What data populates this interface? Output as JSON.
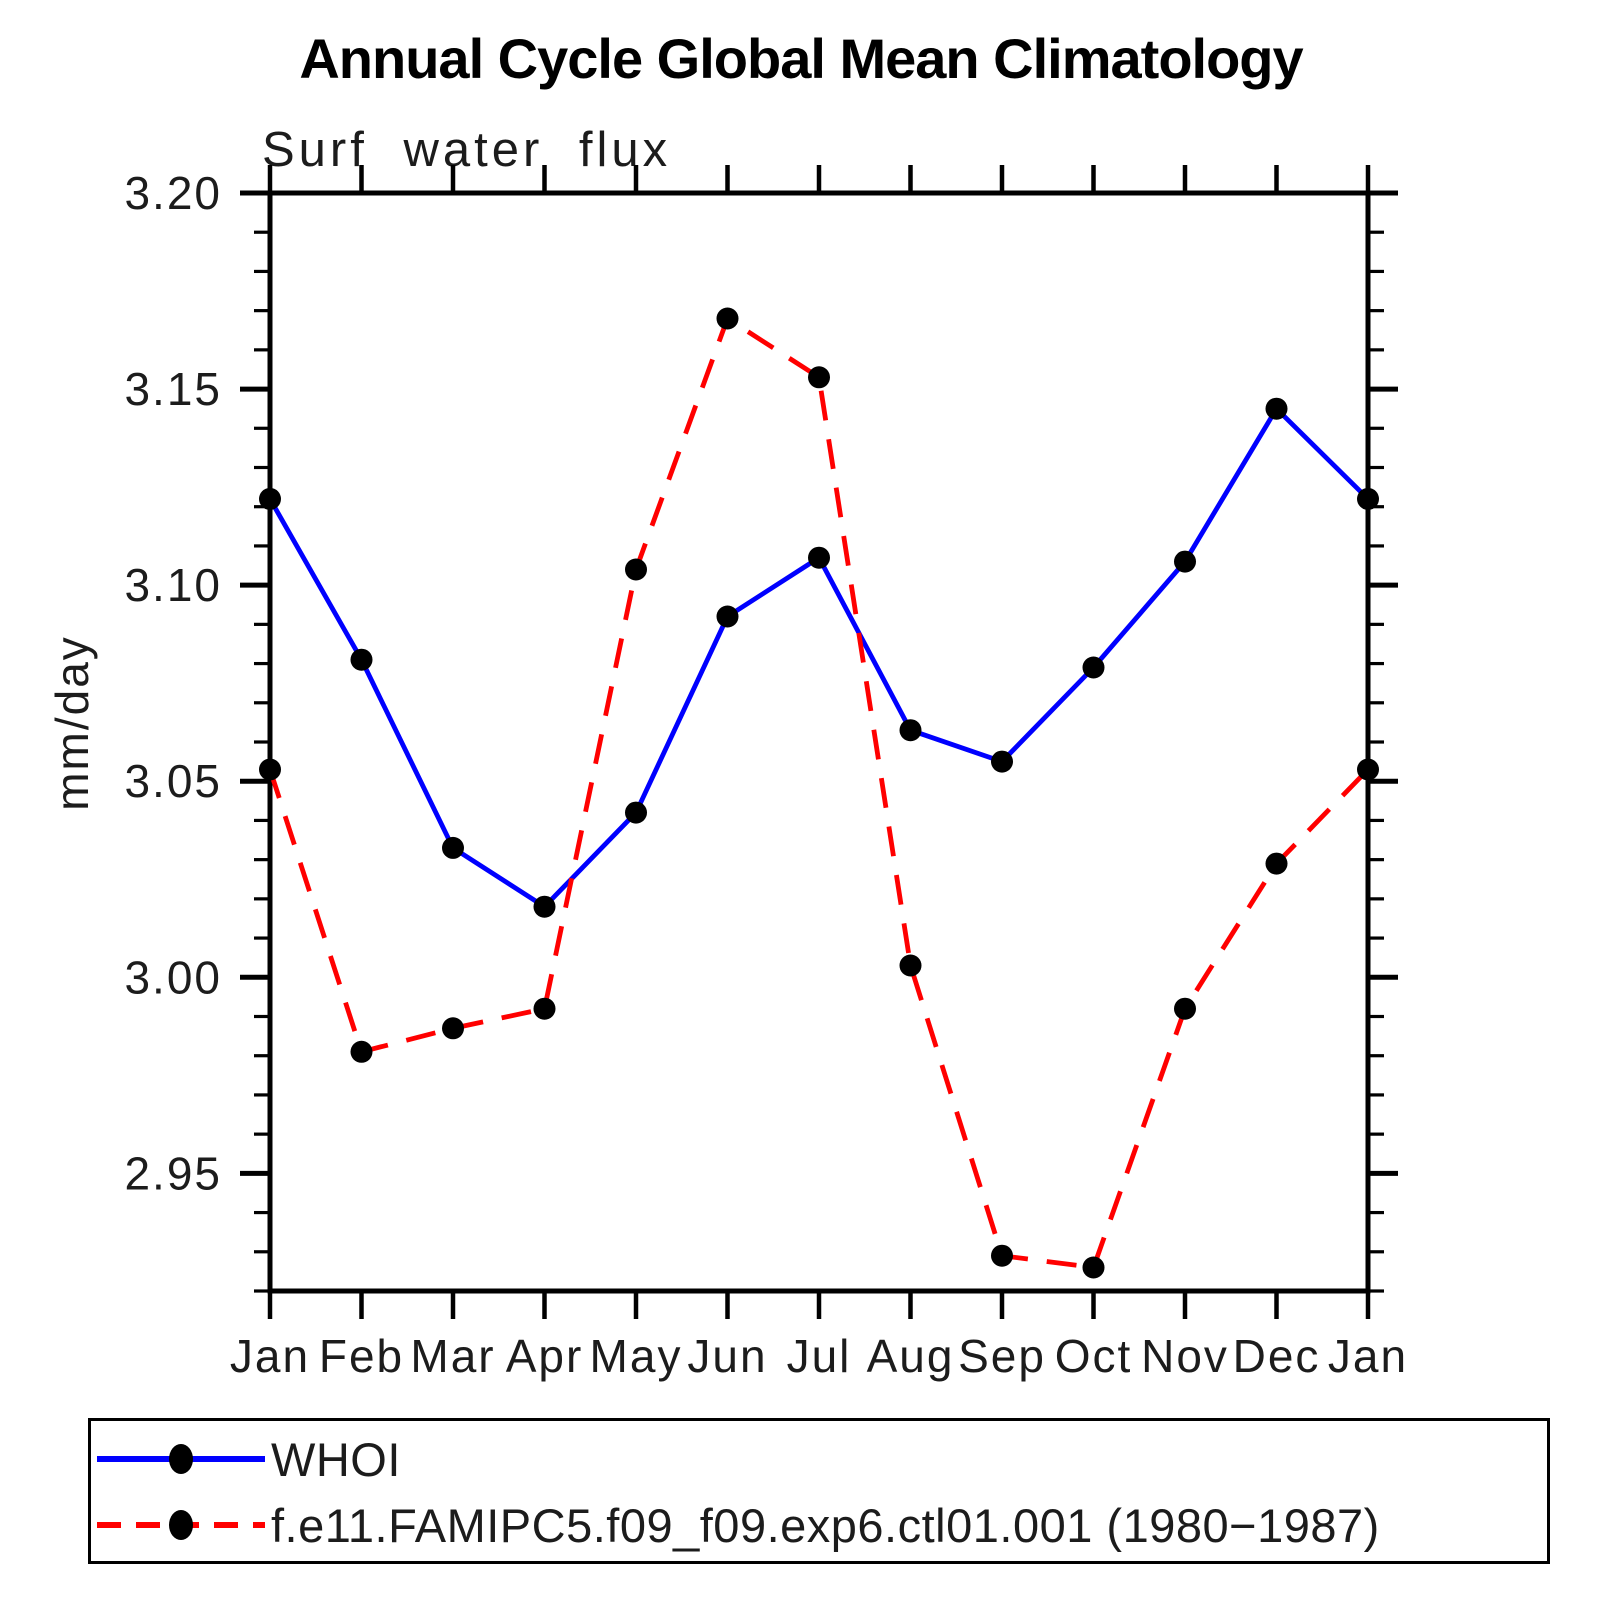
{
  "colors": {
    "whoi_line": "#0000ff",
    "model_line": "#ff0000",
    "marker_fill": "#000000",
    "axis": "#000000",
    "background": "#ffffff"
  },
  "chart_data": {
    "type": "line",
    "title": "Annual Cycle Global Mean Climatology",
    "subtitle": "Surf water flux",
    "ylabel": "mm/day",
    "x_tick_labels": [
      "Jan",
      "Feb",
      "Mar",
      "Apr",
      "May",
      "Jun",
      "Jul",
      "Aug",
      "Sep",
      "Oct",
      "Nov",
      "Dec",
      "Jan"
    ],
    "y_ticks": [
      3.2,
      3.15,
      3.1,
      3.05,
      3.0,
      2.95
    ],
    "y_minor_step": 0.01,
    "ylim": [
      2.92,
      3.2
    ],
    "grid": false,
    "legend_position": "bottom",
    "marker": "filled-circle",
    "series": [
      {
        "name": "WHOI",
        "color": "#0000ff",
        "line_style": "solid",
        "values": [
          3.122,
          3.081,
          3.033,
          3.018,
          3.042,
          3.092,
          3.107,
          3.063,
          3.055,
          3.079,
          3.106,
          3.145,
          3.122
        ]
      },
      {
        "name": "f.e11.FAMIPC5.f09_f09.exp6.ctl01.001 (1980−1987)",
        "color": "#ff0000",
        "line_style": "dashed",
        "values": [
          3.053,
          2.981,
          2.987,
          2.992,
          3.104,
          3.168,
          3.153,
          3.003,
          2.929,
          2.926,
          2.992,
          3.029,
          3.053
        ]
      }
    ]
  }
}
